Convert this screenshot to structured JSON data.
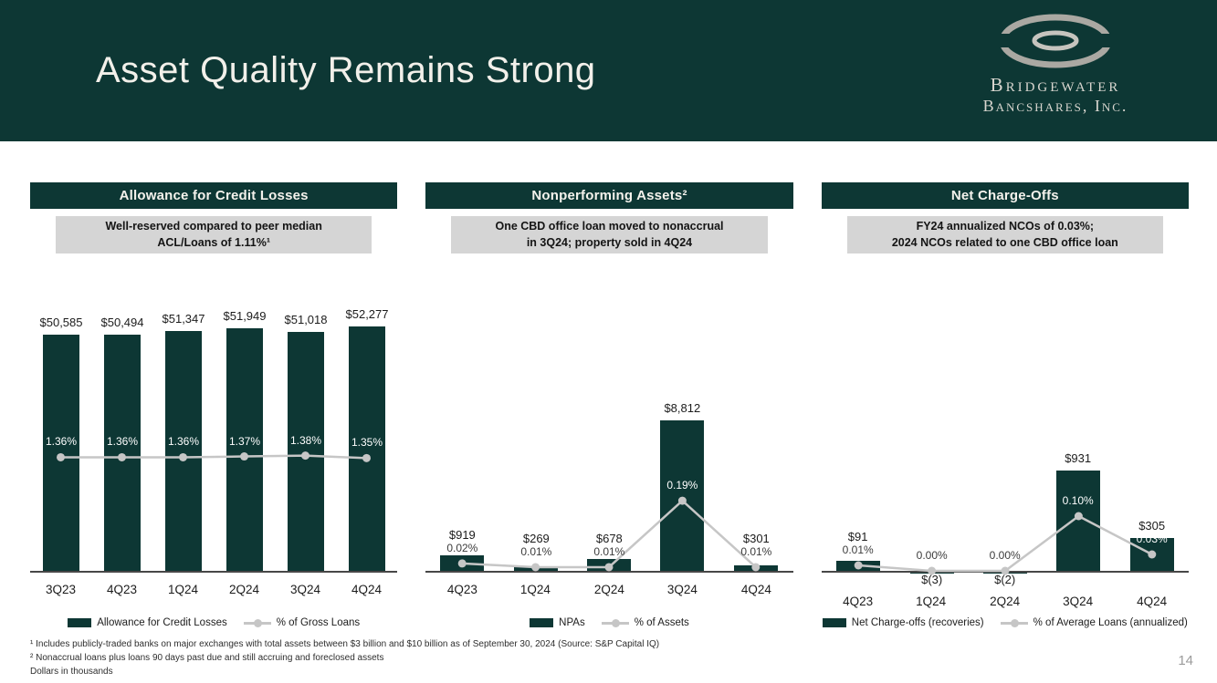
{
  "slide": {
    "title": "Asset Quality Remains Strong",
    "page_number": "14"
  },
  "logo": {
    "line1": "Bridgewater",
    "line2": "Bancshares, Inc."
  },
  "colors": {
    "brand_dark": "#0d3734",
    "line_gray": "#c6c6c6",
    "subtitle_bg": "#d5d5d5"
  },
  "chart_data": [
    {
      "type": "bar",
      "title": "Allowance for Credit Losses",
      "subtitle_line1": "Well-reserved compared to peer median",
      "subtitle_line2": "ACL/Loans of 1.11%¹",
      "categories": [
        "3Q23",
        "4Q23",
        "1Q24",
        "2Q24",
        "3Q24",
        "4Q24"
      ],
      "series": [
        {
          "name": "Allowance for Credit Losses",
          "type": "bar",
          "values": [
            50585,
            50494,
            51347,
            51949,
            51018,
            52277
          ],
          "labels": [
            "$50,585",
            "$50,494",
            "$51,347",
            "$51,949",
            "$51,018",
            "$52,277"
          ]
        },
        {
          "name": "% of Gross Loans",
          "type": "line",
          "values": [
            1.36,
            1.36,
            1.36,
            1.37,
            1.38,
            1.35
          ],
          "labels": [
            "1.36%",
            "1.36%",
            "1.36%",
            "1.37%",
            "1.38%",
            "1.35%"
          ]
        }
      ],
      "grid": false,
      "legend_position": "bottom"
    },
    {
      "type": "bar",
      "title": "Nonperforming Assets²",
      "subtitle_line1": "One CBD office loan moved to nonaccrual",
      "subtitle_line2": "in 3Q24; property sold in 4Q24",
      "categories": [
        "4Q23",
        "1Q24",
        "2Q24",
        "3Q24",
        "4Q24"
      ],
      "series": [
        {
          "name": "NPAs",
          "type": "bar",
          "values": [
            919,
            269,
            678,
            8812,
            301
          ],
          "labels": [
            "$919",
            "$269",
            "$678",
            "$8,812",
            "$301"
          ]
        },
        {
          "name": "% of Assets",
          "type": "line",
          "values": [
            0.02,
            0.01,
            0.01,
            0.19,
            0.01
          ],
          "labels": [
            "0.02%",
            "0.01%",
            "0.01%",
            "0.19%",
            "0.01%"
          ]
        }
      ],
      "grid": false,
      "legend_position": "bottom"
    },
    {
      "type": "bar",
      "title": "Net Charge-Offs",
      "subtitle_line1": "FY24 annualized NCOs of 0.03%;",
      "subtitle_line2": "2024 NCOs related to one CBD office loan",
      "categories": [
        "4Q23",
        "1Q24",
        "2Q24",
        "3Q24",
        "4Q24"
      ],
      "series": [
        {
          "name": "Net Charge-offs (recoveries)",
          "type": "bar",
          "values": [
            91,
            -3,
            -2,
            931,
            305
          ],
          "labels": [
            "$91",
            "$(3)",
            "$(2)",
            "$931",
            "$305"
          ]
        },
        {
          "name": "% of Average Loans (annualized)",
          "type": "line",
          "values": [
            0.01,
            0.0,
            0.0,
            0.1,
            0.03
          ],
          "labels": [
            "0.01%",
            "0.00%",
            "0.00%",
            "0.10%",
            "0.03%"
          ]
        }
      ],
      "grid": false,
      "legend_position": "bottom"
    }
  ],
  "footnotes": [
    "¹ Includes publicly-traded banks on major exchanges with total assets between $3 billion and $10 billion as of September 30, 2024 (Source: S&P Capital IQ)",
    "² Nonaccrual loans plus loans 90 days past due and still accruing and foreclosed assets",
    "Dollars in thousands"
  ]
}
